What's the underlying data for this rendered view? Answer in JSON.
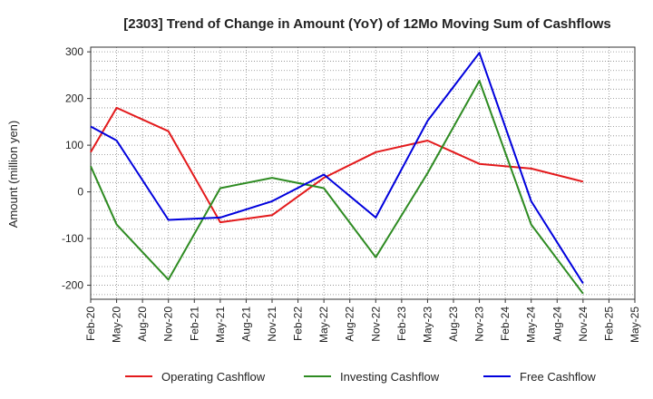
{
  "chart_data": {
    "type": "line",
    "title": "[2303]  Trend of Change in Amount (YoY) of 12Mo Moving Sum of Cashflows",
    "xlabel": "",
    "ylabel": "Amount (million yen)",
    "ylim": [
      -230,
      310
    ],
    "yticks": [
      300,
      200,
      100,
      0,
      -100,
      -200
    ],
    "ytick_labels": [
      "300",
      "200",
      "100",
      "0",
      "-100",
      "-200"
    ],
    "grid": true,
    "legend_position": "bottom",
    "categories": [
      "Feb-20",
      "May-20",
      "Aug-20",
      "Nov-20",
      "Feb-21",
      "May-21",
      "Aug-21",
      "Nov-21",
      "Feb-22",
      "May-22",
      "Aug-22",
      "Nov-22",
      "Feb-23",
      "May-23",
      "Aug-23",
      "Nov-23",
      "Feb-24",
      "May-24",
      "Aug-24",
      "Nov-24",
      "Feb-25",
      "May-25"
    ],
    "series": [
      {
        "name": "Operating Cashflow",
        "color": "#e31a1c",
        "values": [
          85,
          180,
          null,
          130,
          null,
          -65,
          null,
          -50,
          null,
          30,
          null,
          85,
          null,
          110,
          null,
          60,
          null,
          50,
          null,
          22,
          null,
          null
        ]
      },
      {
        "name": "Investing Cashflow",
        "color": "#2e8b22",
        "values": [
          55,
          -70,
          null,
          -188,
          null,
          8,
          null,
          30,
          null,
          8,
          null,
          -140,
          null,
          40,
          null,
          238,
          null,
          -70,
          null,
          -218,
          null,
          null
        ]
      },
      {
        "name": "Free Cashflow",
        "color": "#0000dd",
        "values": [
          140,
          110,
          null,
          -60,
          null,
          -55,
          null,
          -20,
          null,
          37,
          null,
          -55,
          null,
          152,
          null,
          298,
          null,
          -20,
          null,
          -196,
          null,
          null
        ]
      }
    ]
  }
}
